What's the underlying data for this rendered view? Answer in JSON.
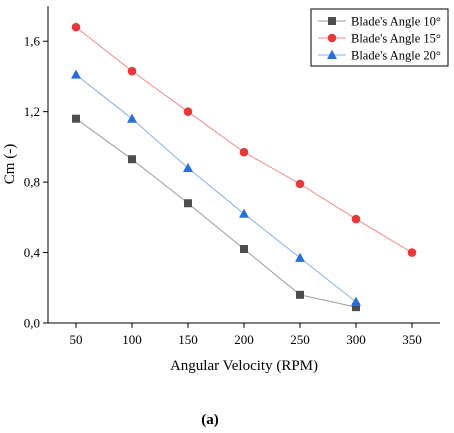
{
  "chart_data": {
    "type": "line",
    "xlabel": "Angular Velocity (RPM)",
    "ylabel": "Cm (-)",
    "xlim": [
      25,
      375
    ],
    "ylim": [
      0.0,
      1.8
    ],
    "xticks": [
      50,
      100,
      150,
      200,
      250,
      300,
      350
    ],
    "xtick_labels": [
      "50",
      "100",
      "150",
      "200",
      "250",
      "300",
      "350"
    ],
    "yticks": [
      0.0,
      0.4,
      0.8,
      1.2,
      1.6
    ],
    "ytick_labels": [
      "0,0",
      "0,4",
      "0,8",
      "1,2",
      "1,6"
    ],
    "grid": false,
    "legend_position": "top-right",
    "series": [
      {
        "name": "Blade's Angle 10°",
        "marker": "square",
        "marker_color": "#4d4d4d",
        "line_color": "#9a9a9a",
        "x": [
          50,
          100,
          150,
          200,
          250,
          300
        ],
        "y": [
          1.16,
          0.93,
          0.68,
          0.42,
          0.16,
          0.09
        ]
      },
      {
        "name": "Blade's Angle 15°",
        "marker": "circle",
        "marker_color": "#e8383b",
        "line_color": "#f08a8a",
        "x": [
          50,
          100,
          150,
          200,
          250,
          300,
          350
        ],
        "y": [
          1.68,
          1.43,
          1.2,
          0.97,
          0.79,
          0.59,
          0.4
        ]
      },
      {
        "name": "Blade's Angle 20°",
        "marker": "triangle",
        "marker_color": "#2a6fd6",
        "line_color": "#8ab0ea",
        "x": [
          50,
          100,
          150,
          200,
          250,
          300
        ],
        "y": [
          1.41,
          1.16,
          0.88,
          0.62,
          0.37,
          0.12
        ]
      }
    ]
  },
  "caption": "(a)"
}
